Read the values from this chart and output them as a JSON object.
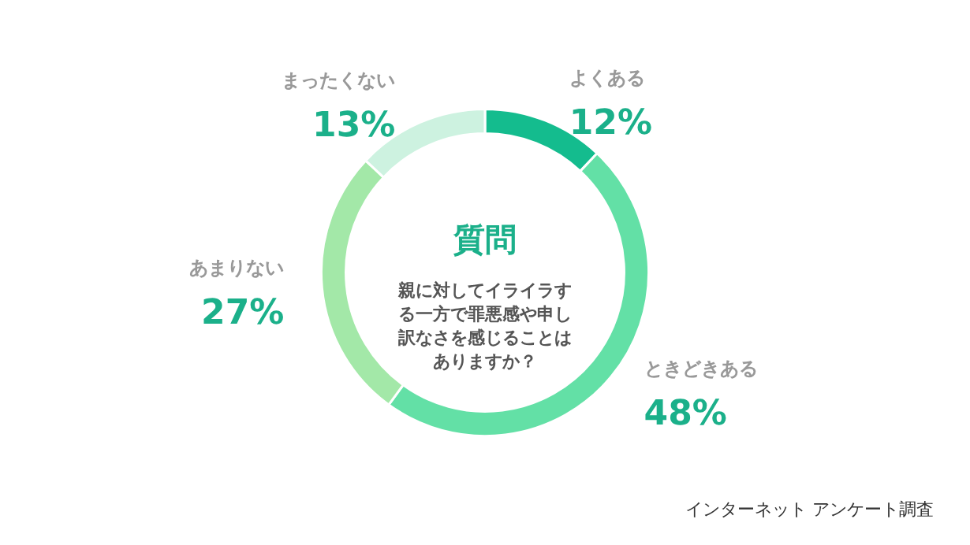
{
  "chart_data": {
    "type": "donut",
    "title": "質問",
    "subtitle": "親に対してイライラする一方で罪悪感や申し訳なさを感じることはありますか？",
    "categories": [
      "よくある",
      "ときどきある",
      "あまりない",
      "まったくない"
    ],
    "values": [
      12,
      48,
      27,
      13
    ],
    "value_labels": [
      "12%",
      "48%",
      "27%",
      "13%"
    ],
    "colors": [
      "#14bc8e",
      "#63e0a6",
      "#a3e8a8",
      "#cdf2e0"
    ],
    "annotations": [
      "インターネット アンケート調査"
    ],
    "legend": false
  }
}
